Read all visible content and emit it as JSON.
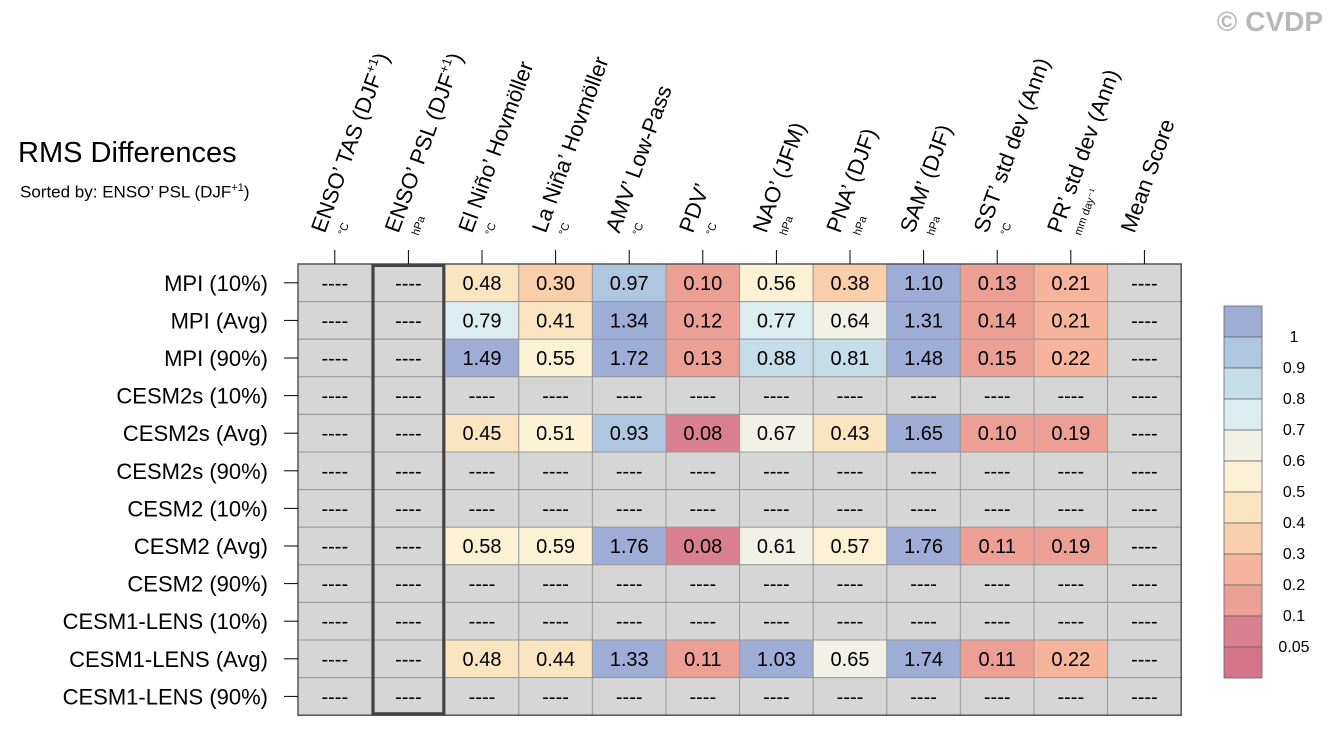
{
  "watermark": "© CVDP",
  "title": "RMS Differences",
  "subtitle": "Sorted by: ENSO’ PSL (DJF",
  "subtitle_sup": "+1",
  "subtitle_end": ")",
  "chart_data": {
    "type": "heatmap",
    "columns": [
      {
        "label": "ENSO’ TAS (DJF",
        "sup": "+1",
        "tail": ")",
        "unit": "°C"
      },
      {
        "label": "ENSO’ PSL (DJF",
        "sup": "+1",
        "tail": ")",
        "unit": "hPa"
      },
      {
        "label": "El Niño’ Hovmöller",
        "sup": "",
        "tail": "",
        "unit": "°C"
      },
      {
        "label": "La Niña’ Hovmöller",
        "sup": "",
        "tail": "",
        "unit": "°C"
      },
      {
        "label": "AMV’ Low-Pass",
        "sup": "",
        "tail": "",
        "unit": "°C"
      },
      {
        "label": "PDV’",
        "sup": "",
        "tail": "",
        "unit": "°C"
      },
      {
        "label": "NAO’ (JFM)",
        "sup": "",
        "tail": "",
        "unit": "hPa"
      },
      {
        "label": "PNA’ (DJF)",
        "sup": "",
        "tail": "",
        "unit": "hPa"
      },
      {
        "label": "SAM’ (DJF)",
        "sup": "",
        "tail": "",
        "unit": "hPa"
      },
      {
        "label": "SST’ std dev (Ann)",
        "sup": "",
        "tail": "",
        "unit": "°C"
      },
      {
        "label": "PR’ std dev (Ann)",
        "sup": "",
        "tail": "",
        "unit": "mm day⁻¹"
      },
      {
        "label": "Mean Score",
        "sup": "",
        "tail": "",
        "unit": ""
      }
    ],
    "rows": [
      "MPI (10%)",
      "MPI (Avg)",
      "MPI (90%)",
      "CESM2s (10%)",
      "CESM2s (Avg)",
      "CESM2s (90%)",
      "CESM2 (10%)",
      "CESM2 (Avg)",
      "CESM2 (90%)",
      "CESM1-LENS (10%)",
      "CESM1-LENS (Avg)",
      "CESM1-LENS (90%)"
    ],
    "values": [
      [
        null,
        null,
        0.48,
        0.3,
        0.97,
        0.1,
        0.56,
        0.38,
        1.1,
        0.13,
        0.21,
        null
      ],
      [
        null,
        null,
        0.79,
        0.41,
        1.34,
        0.12,
        0.77,
        0.64,
        1.31,
        0.14,
        0.21,
        null
      ],
      [
        null,
        null,
        1.49,
        0.55,
        1.72,
        0.13,
        0.88,
        0.81,
        1.48,
        0.15,
        0.22,
        null
      ],
      [
        null,
        null,
        null,
        null,
        null,
        null,
        null,
        null,
        null,
        null,
        null,
        null
      ],
      [
        null,
        null,
        0.45,
        0.51,
        0.93,
        0.08,
        0.67,
        0.43,
        1.65,
        0.1,
        0.19,
        null
      ],
      [
        null,
        null,
        null,
        null,
        null,
        null,
        null,
        null,
        null,
        null,
        null,
        null
      ],
      [
        null,
        null,
        null,
        null,
        null,
        null,
        null,
        null,
        null,
        null,
        null,
        null
      ],
      [
        null,
        null,
        0.58,
        0.59,
        1.76,
        0.08,
        0.61,
        0.57,
        1.76,
        0.11,
        0.19,
        null
      ],
      [
        null,
        null,
        null,
        null,
        null,
        null,
        null,
        null,
        null,
        null,
        null,
        null
      ],
      [
        null,
        null,
        null,
        null,
        null,
        null,
        null,
        null,
        null,
        null,
        null,
        null
      ],
      [
        null,
        null,
        0.48,
        0.44,
        1.33,
        0.11,
        1.03,
        0.65,
        1.74,
        0.11,
        0.22,
        null
      ],
      [
        null,
        null,
        null,
        null,
        null,
        null,
        null,
        null,
        null,
        null,
        null,
        null
      ]
    ],
    "missing_label": "----",
    "sorted_column": "ENSO’ PSL (DJF+1)",
    "colorbar": {
      "labels": [
        "1",
        "0.9",
        "0.8",
        "0.7",
        "0.6",
        "0.5",
        "0.4",
        "0.3",
        "0.2",
        "0.1",
        "0.05"
      ],
      "levels": [
        1.0,
        0.9,
        0.8,
        0.7,
        0.6,
        0.5,
        0.4,
        0.3,
        0.2,
        0.1,
        0.05
      ],
      "colors": [
        "#9dadd6",
        "#aec6df",
        "#c5dde9",
        "#dcedf2",
        "#f1f1e7",
        "#fbf2d5",
        "#fbe4c0",
        "#f8cfaa",
        "#f5b49b",
        "#eca095",
        "#d97f8e",
        "#d57489"
      ]
    },
    "missing_color": "#d6d6d6"
  }
}
